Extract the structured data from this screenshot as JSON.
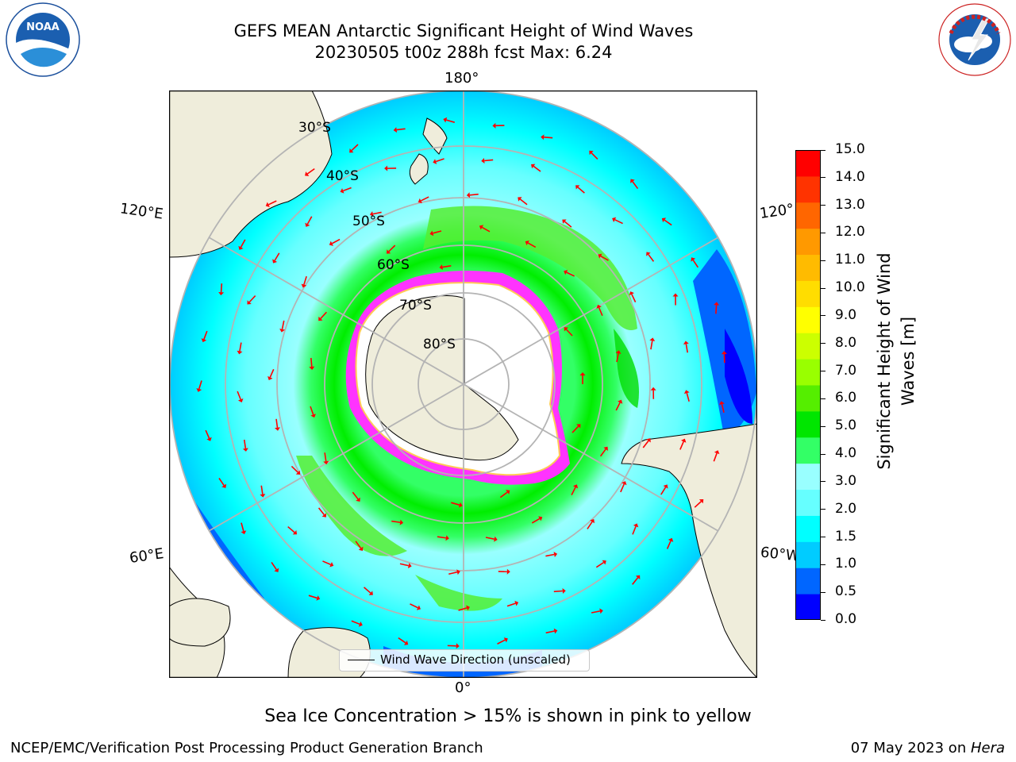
{
  "header": {
    "title_line1": "GEFS MEAN Antarctic Significant Height of Wind Waves",
    "title_line2": "20230505 t00z 288h fcst   Max: 6.24"
  },
  "logos": {
    "left": "NOAA",
    "left_ring_text": "NATIONAL OCEANIC AND ATMOSPHERIC ADMINISTRATION · U.S. DEPARTMENT OF COMMERCE",
    "right_ring_text": "NATIONAL WEATHER SERVICE"
  },
  "map": {
    "projection": "south-polar-stereographic",
    "longitude_labels": {
      "top": "180°",
      "bottom": "0°",
      "upper_left": "120°E",
      "lower_left": "60°E",
      "upper_right": "120°",
      "lower_right": "60°W"
    },
    "latitude_labels": [
      "30°S",
      "40°S",
      "50°S",
      "60°S",
      "70°S",
      "80°S"
    ],
    "legend_label": "Wind Wave Direction (unscaled)",
    "max_value": 6.24,
    "colors": {
      "land": "#efeddb",
      "ice": "#ffffff",
      "sea_ice_edge": "#ff33ff",
      "arrow": "#ff0000",
      "grid": "#b4b4b4"
    }
  },
  "colorbar": {
    "title_line1": "Significant Height of Wind",
    "title_line2": "Waves [m]",
    "ticks": [
      "15.0",
      "14.0",
      "13.0",
      "12.0",
      "11.0",
      "10.0",
      "9.0",
      "8.0",
      "7.0",
      "6.0",
      "5.0",
      "4.0",
      "3.0",
      "2.0",
      "1.5",
      "1.0",
      "0.5",
      "0.0"
    ],
    "bands_bottom_to_top": [
      "#0000ff",
      "#0066ff",
      "#00ccff",
      "#00ffff",
      "#66ffff",
      "#99ffff",
      "#33ff66",
      "#00e600",
      "#55ee00",
      "#99ff00",
      "#ccff00",
      "#ffff00",
      "#ffdd00",
      "#ffbb00",
      "#ff9900",
      "#ff6600",
      "#ff3300",
      "#ff0000"
    ]
  },
  "footer": {
    "note": "Sea Ice Concentration > 15% is shown in pink to yellow",
    "left": "NCEP/EMC/Verification Post Processing Product Generation Branch",
    "right_prefix": "07 May 2023 on ",
    "right_machine": "Hera"
  }
}
